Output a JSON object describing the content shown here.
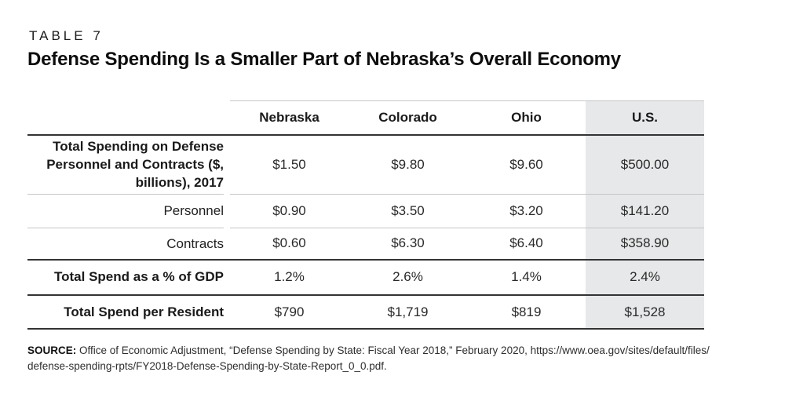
{
  "page": {
    "table_label": "TABLE 7",
    "title": "Defense Spending Is a Smaller Part of Nebraska’s Overall Economy"
  },
  "table": {
    "columns": [
      "Nebraska",
      "Colorado",
      "Ohio",
      "U.S."
    ],
    "highlighted_column": "U.S.",
    "highlight_bg": "#e7e8e9",
    "rows": [
      {
        "label": "Total Spending on Defense Personnel and Contracts ($, billions), 2017",
        "values": [
          "$1.50",
          "$9.80",
          "$9.60",
          "$500.00"
        ]
      },
      {
        "label": "Personnel",
        "values": [
          "$0.90",
          "$3.50",
          "$3.20",
          "$141.20"
        ]
      },
      {
        "label": "Contracts",
        "values": [
          "$0.60",
          "$6.30",
          "$6.40",
          "$358.90"
        ]
      },
      {
        "label": "Total Spend as a % of GDP",
        "values": [
          "1.2%",
          "2.6%",
          "1.4%",
          "2.4%"
        ]
      },
      {
        "label": "Total Spend per Resident",
        "values": [
          "$790",
          "$1,719",
          "$819",
          "$1,528"
        ]
      }
    ]
  },
  "chart_data": {
    "type": "table",
    "title": "Defense Spending Is a Smaller Part of Nebraska’s Overall Economy",
    "table_label": "TABLE 7",
    "columns": [
      "Nebraska",
      "Colorado",
      "Ohio",
      "U.S."
    ],
    "highlighted_column": "U.S.",
    "rows": [
      {
        "label": "Total Spending on Defense Personnel and Contracts ($, billions), 2017",
        "display": [
          "$1.50",
          "$9.80",
          "$9.60",
          "$500.00"
        ],
        "numeric": [
          1.5,
          9.8,
          9.6,
          500.0
        ]
      },
      {
        "label": "Personnel",
        "display": [
          "$0.90",
          "$3.50",
          "$3.20",
          "$141.20"
        ],
        "numeric": [
          0.9,
          3.5,
          3.2,
          141.2
        ]
      },
      {
        "label": "Contracts",
        "display": [
          "$0.60",
          "$6.30",
          "$6.40",
          "$358.90"
        ],
        "numeric": [
          0.6,
          6.3,
          6.4,
          358.9
        ]
      },
      {
        "label": "Total Spend as a % of GDP",
        "display": [
          "1.2%",
          "2.6%",
          "1.4%",
          "2.4%"
        ],
        "numeric": [
          1.2,
          2.6,
          1.4,
          2.4
        ]
      },
      {
        "label": "Total Spend per Resident",
        "display": [
          "$790",
          "$1,719",
          "$819",
          "$1,528"
        ],
        "numeric": [
          790,
          1719,
          819,
          1528
        ]
      }
    ],
    "source": "SOURCE: Office of Economic Adjustment, “Defense Spending by State: Fiscal Year 2018,” February 2020, https://www.oea.gov/sites/default/files/defense-spending-rpts/FY2018-Defense-Spending-by-State-Report_0_0.pdf."
  },
  "source_note": {
    "prefix": "SOURCE:",
    "line1": " Office of Economic Adjustment, “Defense Spending by State: Fiscal Year 2018,” February 2020, https://www.oea.gov/sites/default/files/",
    "line2": "defense-spending-rpts/FY2018-Defense-Spending-by-State-Report_0_0.pdf."
  },
  "colors": {
    "highlight_bg": "#e7e8e9",
    "dark_rule": "#333333",
    "light_rule": "#c6c6c6",
    "text": "#1a1a1a"
  }
}
